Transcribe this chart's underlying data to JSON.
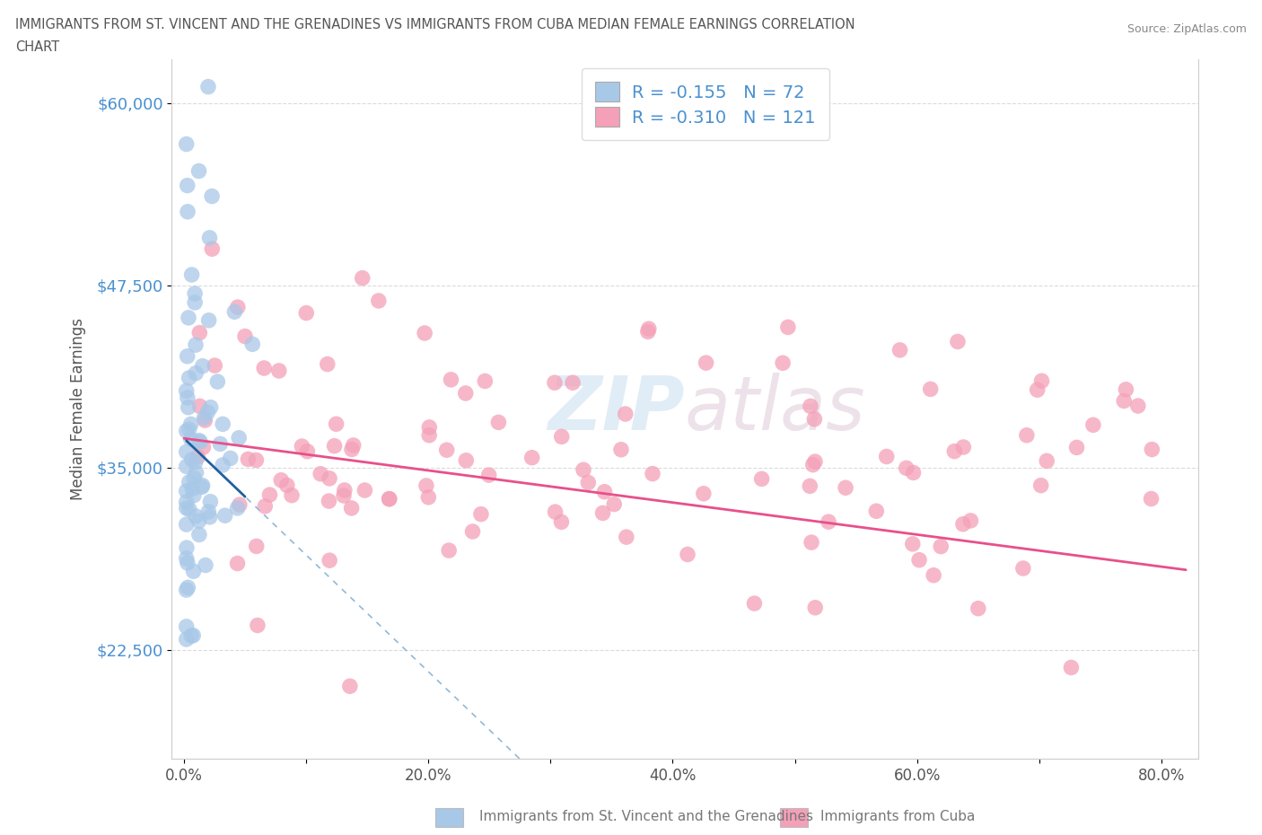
{
  "title_line1": "IMMIGRANTS FROM ST. VINCENT AND THE GRENADINES VS IMMIGRANTS FROM CUBA MEDIAN FEMALE EARNINGS CORRELATION",
  "title_line2": "CHART",
  "source": "Source: ZipAtlas.com",
  "ylabel": "Median Female Earnings",
  "legend_label1": "Immigrants from St. Vincent and the Grenadines",
  "legend_label2": "Immigrants from Cuba",
  "R1": -0.155,
  "N1": 72,
  "R2": -0.31,
  "N2": 121,
  "xlim": [
    -0.01,
    0.83
  ],
  "ylim": [
    15000,
    63000
  ],
  "yticks": [
    22500,
    35000,
    47500,
    60000
  ],
  "ytick_labels": [
    "$22,500",
    "$35,000",
    "$47,500",
    "$60,000"
  ],
  "xtick_labels": [
    "0.0%",
    "",
    "20.0%",
    "",
    "40.0%",
    "",
    "60.0%",
    "",
    "80.0%"
  ],
  "xticks": [
    0.0,
    0.1,
    0.2,
    0.3,
    0.4,
    0.5,
    0.6,
    0.7,
    0.8
  ],
  "color1": "#a8c8e8",
  "color2": "#f4a0b8",
  "line_color1": "#2060a0",
  "line_color2": "#e8508a",
  "axis_label_color": "#4a90d0",
  "background_color": "#ffffff",
  "title_color": "#555555",
  "source_color": "#888888"
}
